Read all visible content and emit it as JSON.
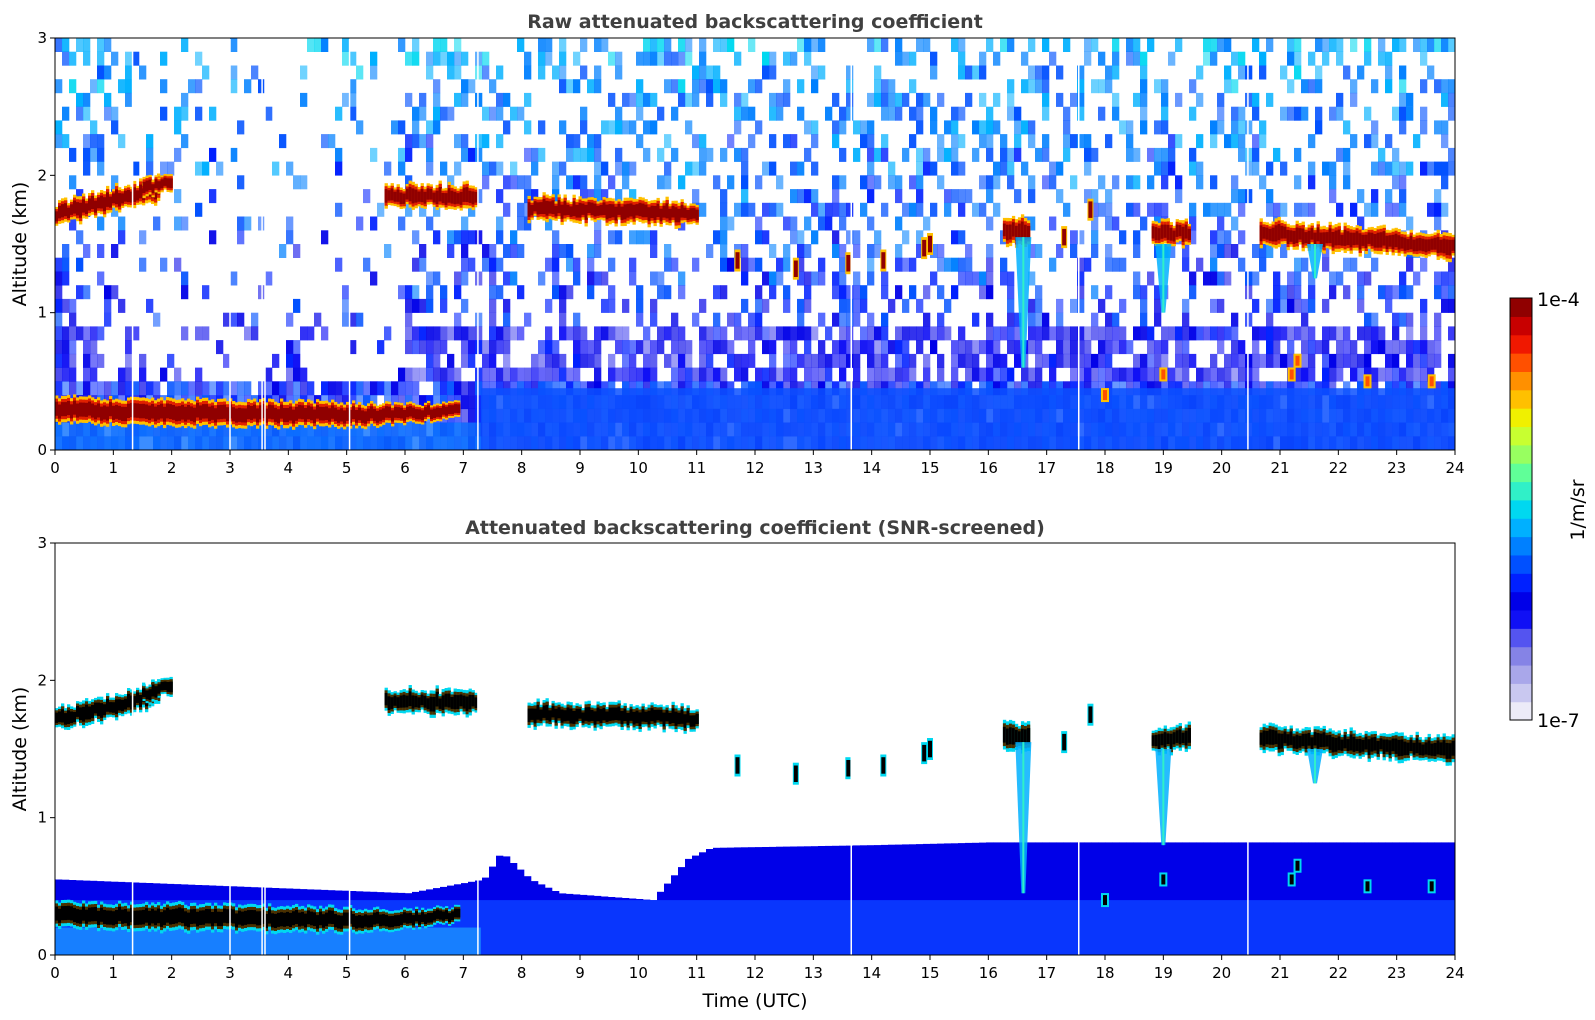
{
  "chart_data": [
    {
      "type": "heatmap",
      "id": "top",
      "title": "Raw attenuated backscattering coefficient",
      "xlabel": "",
      "ylabel": "Altitude (km)",
      "xlim": [
        0,
        24
      ],
      "ylim": [
        0,
        3
      ],
      "x_ticks": [
        0,
        1,
        2,
        3,
        4,
        5,
        6,
        7,
        8,
        9,
        10,
        11,
        12,
        13,
        14,
        15,
        16,
        17,
        18,
        19,
        20,
        21,
        22,
        23,
        24
      ],
      "y_ticks": [
        0,
        1,
        2,
        3
      ],
      "screened": false,
      "boundary_layer": [
        {
          "t": 0.0,
          "base": 0.22,
          "top": 0.38
        },
        {
          "t": 1.0,
          "base": 0.2,
          "top": 0.36
        },
        {
          "t": 2.0,
          "base": 0.19,
          "top": 0.36
        },
        {
          "t": 3.0,
          "base": 0.19,
          "top": 0.35
        },
        {
          "t": 4.0,
          "base": 0.18,
          "top": 0.34
        },
        {
          "t": 5.0,
          "base": 0.18,
          "top": 0.33
        },
        {
          "t": 6.0,
          "base": 0.2,
          "top": 0.32
        },
        {
          "t": 6.8,
          "base": 0.24,
          "top": 0.34
        }
      ],
      "cloud_layers": [
        {
          "t0": 0.0,
          "t1": 1.8,
          "alt0": 1.72,
          "alt1": 1.9,
          "thick": 0.12
        },
        {
          "t0": 1.5,
          "t1": 2.0,
          "alt0": 1.9,
          "alt1": 1.96,
          "thick": 0.1
        },
        {
          "t0": 5.65,
          "t1": 7.2,
          "alt0": 1.85,
          "alt1": 1.84,
          "thick": 0.12
        },
        {
          "t0": 8.1,
          "t1": 11.0,
          "alt0": 1.76,
          "alt1": 1.72,
          "thick": 0.12
        },
        {
          "t0": 16.25,
          "t1": 16.7,
          "alt0": 1.6,
          "alt1": 1.58,
          "thick": 0.14
        },
        {
          "t0": 18.8,
          "t1": 19.45,
          "alt0": 1.57,
          "alt1": 1.58,
          "thick": 0.12
        },
        {
          "t0": 20.65,
          "t1": 23.95,
          "alt0": 1.58,
          "alt1": 1.49,
          "thick": 0.13
        }
      ],
      "cloud_patches": [
        {
          "t": 11.7,
          "alt": 1.38
        },
        {
          "t": 12.7,
          "alt": 1.32
        },
        {
          "t": 13.6,
          "alt": 1.36
        },
        {
          "t": 14.2,
          "alt": 1.38
        },
        {
          "t": 14.9,
          "alt": 1.47
        },
        {
          "t": 15.0,
          "alt": 1.5
        },
        {
          "t": 17.3,
          "alt": 1.55
        },
        {
          "t": 17.75,
          "alt": 1.75
        }
      ],
      "virga": [
        {
          "t": 16.6,
          "alt_top": 1.55,
          "alt_bottom": 0.6
        },
        {
          "t": 19.0,
          "alt_top": 1.5,
          "alt_bottom": 1.0
        },
        {
          "t": 21.6,
          "alt_top": 1.5,
          "alt_bottom": 1.25
        }
      ],
      "low_cloud_spots": [
        {
          "t": 18.0,
          "alt": 0.4
        },
        {
          "t": 19.0,
          "alt": 0.55
        },
        {
          "t": 21.2,
          "alt": 0.55
        },
        {
          "t": 21.3,
          "alt": 0.65
        },
        {
          "t": 22.5,
          "alt": 0.5
        },
        {
          "t": 23.6,
          "alt": 0.5
        }
      ],
      "data_gaps": [
        1.33,
        3.0,
        3.55,
        3.6,
        5.05,
        7.25,
        13.65,
        17.55,
        20.45
      ]
    },
    {
      "type": "heatmap",
      "id": "bottom",
      "title": "Attenuated backscattering coefficient (SNR-screened)",
      "xlabel": "Time (UTC)",
      "ylabel": "Altitude (km)",
      "xlim": [
        0,
        24
      ],
      "ylim": [
        0,
        3
      ],
      "x_ticks": [
        0,
        1,
        2,
        3,
        4,
        5,
        6,
        7,
        8,
        9,
        10,
        11,
        12,
        13,
        14,
        15,
        16,
        17,
        18,
        19,
        20,
        21,
        22,
        23,
        24
      ],
      "y_ticks": [
        0,
        1,
        2,
        3
      ],
      "screened": true,
      "boundary_layer": [
        {
          "t": 0.0,
          "base": 0.22,
          "top": 0.38
        },
        {
          "t": 1.0,
          "base": 0.2,
          "top": 0.36
        },
        {
          "t": 2.0,
          "base": 0.19,
          "top": 0.36
        },
        {
          "t": 3.0,
          "base": 0.19,
          "top": 0.35
        },
        {
          "t": 4.0,
          "base": 0.18,
          "top": 0.34
        },
        {
          "t": 5.0,
          "base": 0.18,
          "top": 0.33
        },
        {
          "t": 6.0,
          "base": 0.2,
          "top": 0.32
        },
        {
          "t": 6.8,
          "base": 0.24,
          "top": 0.34
        }
      ],
      "cloud_layers": [
        {
          "t0": 0.0,
          "t1": 1.8,
          "alt0": 1.72,
          "alt1": 1.9,
          "thick": 0.12
        },
        {
          "t0": 1.5,
          "t1": 2.0,
          "alt0": 1.9,
          "alt1": 1.96,
          "thick": 0.1
        },
        {
          "t0": 5.65,
          "t1": 7.2,
          "alt0": 1.85,
          "alt1": 1.84,
          "thick": 0.12
        },
        {
          "t0": 8.1,
          "t1": 11.0,
          "alt0": 1.76,
          "alt1": 1.72,
          "thick": 0.12
        },
        {
          "t0": 16.25,
          "t1": 16.7,
          "alt0": 1.6,
          "alt1": 1.58,
          "thick": 0.14
        },
        {
          "t0": 18.8,
          "t1": 19.45,
          "alt0": 1.57,
          "alt1": 1.58,
          "thick": 0.12
        },
        {
          "t0": 20.65,
          "t1": 23.95,
          "alt0": 1.58,
          "alt1": 1.49,
          "thick": 0.13
        }
      ],
      "cloud_patches": [
        {
          "t": 11.7,
          "alt": 1.38
        },
        {
          "t": 12.7,
          "alt": 1.32
        },
        {
          "t": 13.6,
          "alt": 1.36
        },
        {
          "t": 14.2,
          "alt": 1.38
        },
        {
          "t": 14.9,
          "alt": 1.47
        },
        {
          "t": 15.0,
          "alt": 1.5
        },
        {
          "t": 17.3,
          "alt": 1.55
        },
        {
          "t": 17.75,
          "alt": 1.75
        }
      ],
      "virga": [
        {
          "t": 16.6,
          "alt_top": 1.55,
          "alt_bottom": 0.45
        },
        {
          "t": 19.0,
          "alt_top": 1.5,
          "alt_bottom": 0.8
        },
        {
          "t": 21.6,
          "alt_top": 1.5,
          "alt_bottom": 1.25
        }
      ],
      "low_cloud_spots": [
        {
          "t": 18.0,
          "alt": 0.4
        },
        {
          "t": 19.0,
          "alt": 0.55
        },
        {
          "t": 21.2,
          "alt": 0.55
        },
        {
          "t": 21.3,
          "alt": 0.65
        },
        {
          "t": 22.5,
          "alt": 0.5
        },
        {
          "t": 23.6,
          "alt": 0.5
        }
      ],
      "aerosol_top": [
        {
          "t": 0.0,
          "alt": 0.55
        },
        {
          "t": 6.0,
          "alt": 0.45
        },
        {
          "t": 7.3,
          "alt": 0.55
        },
        {
          "t": 7.6,
          "alt": 0.75
        },
        {
          "t": 8.1,
          "alt": 0.55
        },
        {
          "t": 8.6,
          "alt": 0.45
        },
        {
          "t": 10.2,
          "alt": 0.4
        },
        {
          "t": 10.8,
          "alt": 0.7
        },
        {
          "t": 11.2,
          "alt": 0.78
        },
        {
          "t": 14.0,
          "alt": 0.8
        },
        {
          "t": 16.0,
          "alt": 0.82
        },
        {
          "t": 24.0,
          "alt": 0.82
        }
      ],
      "data_gaps": [
        1.33,
        3.0,
        3.55,
        3.6,
        5.05,
        7.25,
        13.65,
        17.55,
        20.45
      ]
    }
  ],
  "colorbar": {
    "label": "1/m/sr",
    "max_label": "1e-4",
    "min_label": "1e-7",
    "vmin": 1e-07,
    "vmax": 0.0001,
    "scale": "log",
    "colors": [
      "#ecebf8",
      "#c9c8f0",
      "#a9a7ea",
      "#8583e6",
      "#5454f0",
      "#1010f5",
      "#0000e8",
      "#0020ff",
      "#0050ff",
      "#0080ff",
      "#00b0ff",
      "#00d8f0",
      "#30f0c8",
      "#60ff98",
      "#98ff60",
      "#c8ff30",
      "#f0f000",
      "#ffc000",
      "#ff9000",
      "#ff5000",
      "#f01800",
      "#c80000",
      "#900000"
    ]
  }
}
